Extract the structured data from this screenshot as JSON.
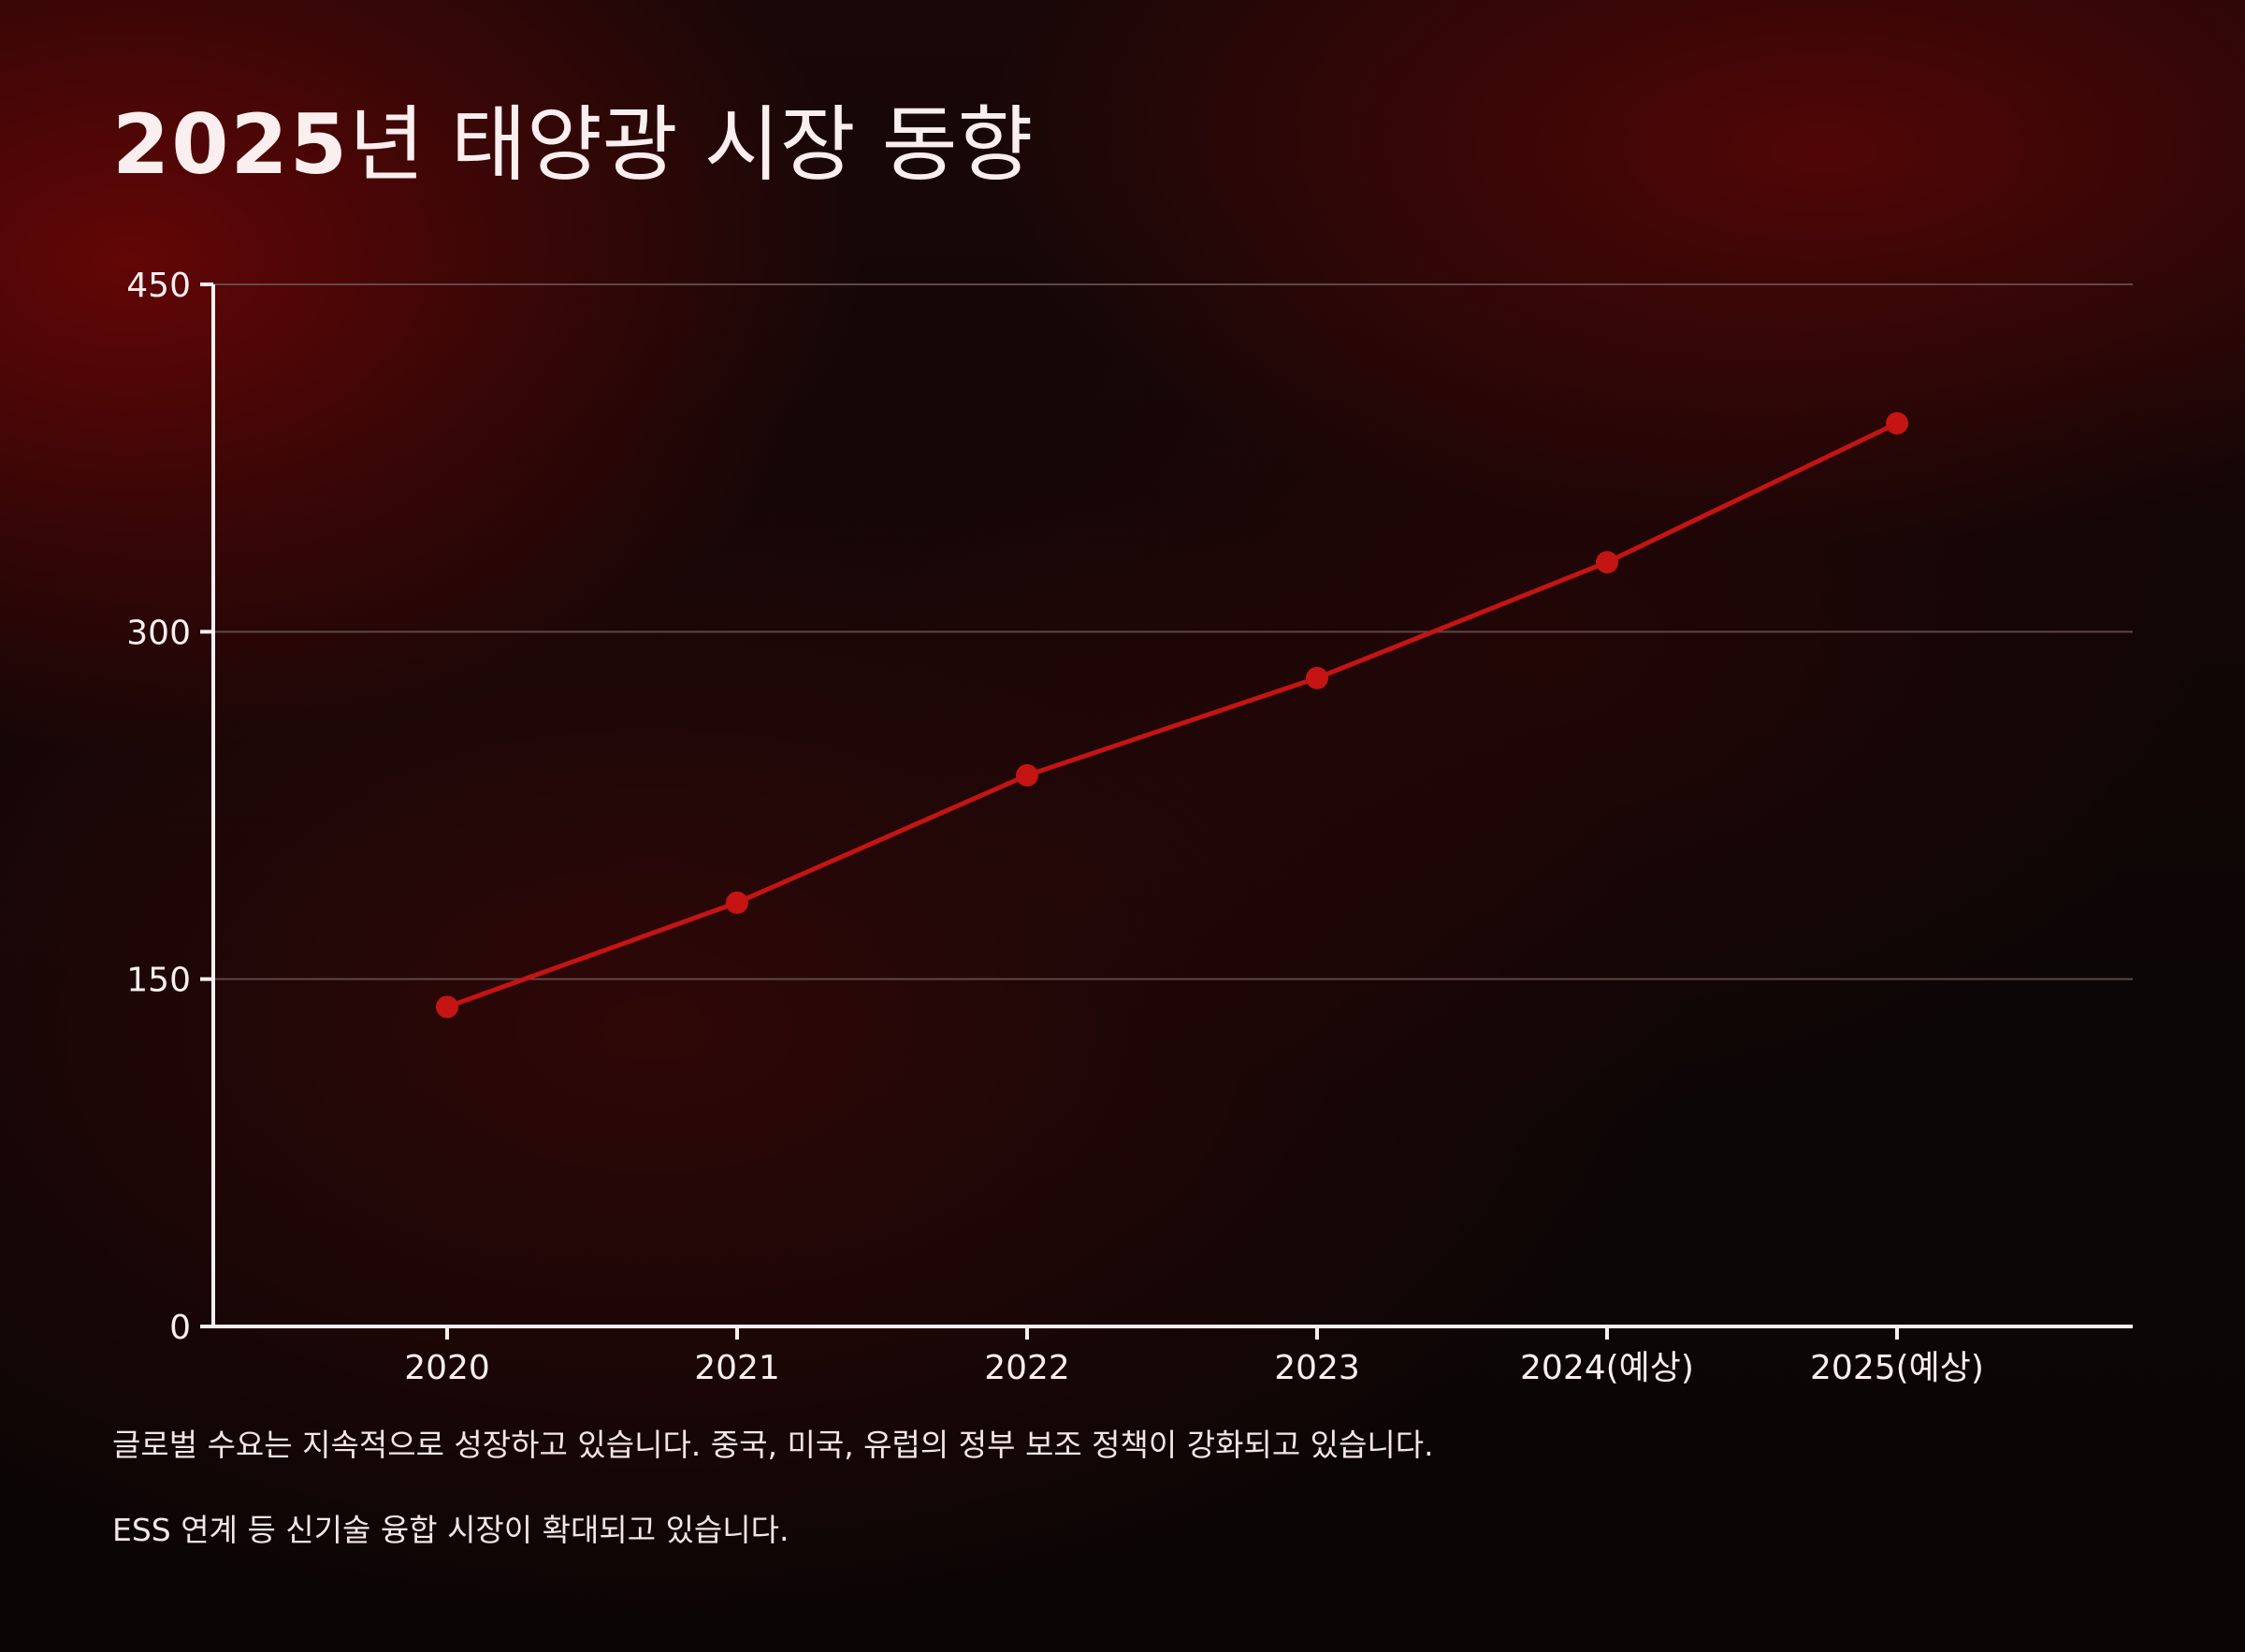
{
  "title": {
    "year": "2025",
    "rest": "년 태양광 시장 동향"
  },
  "colors": {
    "line": "#c41414",
    "point": "#c41414",
    "axis": "#fbeeee",
    "grid": "#6a5252",
    "text": "#fbeeee"
  },
  "chart_data": {
    "type": "line",
    "title": "",
    "xlabel": "",
    "ylabel": "",
    "categories": [
      "2020",
      "2021",
      "2022",
      "2023",
      "2024(예상)",
      "2025(예상)"
    ],
    "series": [
      {
        "values": [
          138,
          183,
          238,
          280,
          330,
          390
        ]
      }
    ],
    "ylim": [
      0,
      450
    ],
    "yticks": [
      0,
      150,
      300,
      450
    ],
    "grid": true,
    "legend": "none"
  },
  "notes": [
    "글로벌 수요는 지속적으로 성장하고 있습니다. 중국, 미국, 유럽의 정부 보조 정책이 강화되고 있습니다.",
    "ESS 연계 등 신기술 융합 시장이 확대되고 있습니다."
  ]
}
